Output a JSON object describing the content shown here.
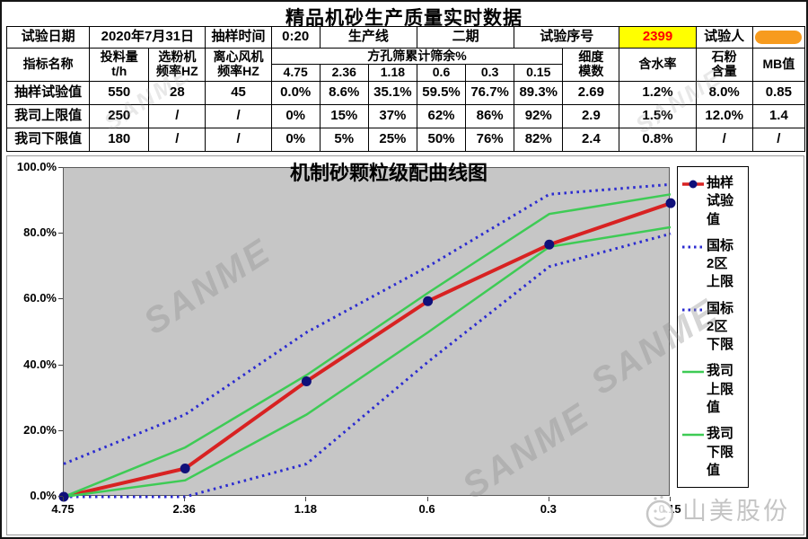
{
  "page_title": "精品机砂生产质量实时数据",
  "info": {
    "date_label": "试验日期",
    "date_value": "2020年7月31日",
    "time_label": "抽样时间",
    "time_value": "0:20",
    "line_label": "生产线",
    "line_value": "二期",
    "serial_label": "试验序号",
    "serial_value": "2399",
    "tester_label": "试验人"
  },
  "table": {
    "header": {
      "name": "指标名称",
      "feed": "投料量\nt/h",
      "classifier": "选粉机\n频率HZ",
      "fan": "离心风机\n频率HZ",
      "sieve_group": "方孔筛累计筛余%",
      "sieves": [
        "4.75",
        "2.36",
        "1.18",
        "0.6",
        "0.3",
        "0.15"
      ],
      "fineness": "细度\n模数",
      "moisture": "含水率",
      "stone": "石粉\n含量",
      "mb": "MB值"
    },
    "rows": [
      {
        "label": "抽样试验值",
        "feed": "550",
        "classifier": "28",
        "fan": "45",
        "sieve": [
          "0.0%",
          "8.6%",
          "35.1%",
          "59.5%",
          "76.7%",
          "89.3%"
        ],
        "fineness": "2.69",
        "moisture": "1.2%",
        "stone": "8.0%",
        "mb": "0.85"
      },
      {
        "label": "我司上限值",
        "feed": "250",
        "classifier": "/",
        "fan": "/",
        "sieve": [
          "0%",
          "15%",
          "37%",
          "62%",
          "86%",
          "92%"
        ],
        "fineness": "2.9",
        "moisture": "1.5%",
        "stone": "12.0%",
        "mb": "1.4"
      },
      {
        "label": "我司下限值",
        "feed": "180",
        "classifier": "/",
        "fan": "/",
        "sieve": [
          "0%",
          "5%",
          "25%",
          "50%",
          "76%",
          "82%"
        ],
        "fineness": "2.4",
        "moisture": "0.8%",
        "stone": "/",
        "mb": "/"
      }
    ]
  },
  "chart_data": {
    "type": "line",
    "title": "机制砂颗粒级配曲线图",
    "x_labels": [
      "4.75",
      "2.36",
      "1.18",
      "0.6",
      "0.3",
      "0.15"
    ],
    "y_ticks": [
      "100.0%",
      "80.0%",
      "60.0%",
      "40.0%",
      "20.0%",
      "0.0%"
    ],
    "ylim": [
      0,
      100
    ],
    "grid": false,
    "legend_position": "right",
    "plot_bg": "#c6c6c6",
    "series": [
      {
        "name": "抽样试验值",
        "legend_label": "抽样\n试验\n值",
        "style": "line-marker",
        "color": "#d82222",
        "marker_color": "#10107a",
        "values": [
          0,
          8.6,
          35.1,
          59.5,
          76.7,
          89.3
        ]
      },
      {
        "name": "国标2区上限",
        "legend_label": "国标\n2区\n上限",
        "style": "dotted",
        "color": "#2b2bd0",
        "values": [
          10,
          25,
          50,
          70,
          92,
          95
        ]
      },
      {
        "name": "国标2区下限",
        "legend_label": "国标\n2区\n下限",
        "style": "dotted",
        "color": "#2b2bd0",
        "values": [
          0,
          0,
          10,
          41,
          70,
          80
        ]
      },
      {
        "name": "我司上限值",
        "legend_label": "我司\n上限\n值",
        "style": "solid",
        "color": "#3ecb55",
        "values": [
          0,
          15,
          37,
          62,
          86,
          92
        ]
      },
      {
        "name": "我司下限值",
        "legend_label": "我司\n下限\n值",
        "style": "solid",
        "color": "#3ecb55",
        "values": [
          0,
          5,
          25,
          50,
          76,
          82
        ]
      }
    ]
  },
  "watermark_text": "SANME",
  "brand": {
    "text": "山美股份"
  },
  "colors": {
    "serial_bg": "#ffff00",
    "serial_text": "#ff0000",
    "redaction": "#f79b1e",
    "plot_bg": "#c6c6c6"
  }
}
